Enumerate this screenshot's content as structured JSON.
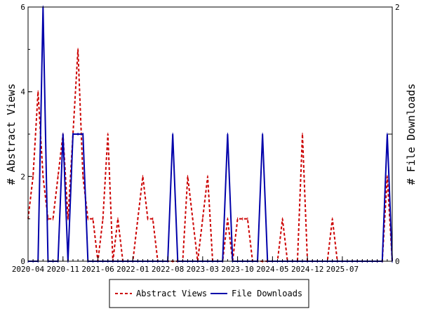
{
  "chart_data": {
    "type": "line",
    "xlabel": "",
    "ylabel_left": "# Abstract Views",
    "ylabel_right": "# File Downloads",
    "ylim_left": [
      0,
      6
    ],
    "ylim_right": [
      0,
      2
    ],
    "yticks_left": [
      "0",
      "2",
      "4",
      "6"
    ],
    "yticks_right": [
      "0",
      "1",
      "2"
    ],
    "x_ticks": [
      "2020-04",
      "2020-11",
      "2021-06",
      "2022-01",
      "2022-08",
      "2023-03",
      "2023-10",
      "2024-05",
      "2024-12",
      "2025-07"
    ],
    "x_start_month": "2020-04",
    "legend_position": "bottom",
    "grid": false,
    "series": [
      {
        "name": "Abstract Views",
        "axis": "left",
        "color": "#cc0000",
        "dash": "dashed",
        "values": [
          1,
          2,
          4,
          2,
          1,
          1,
          2,
          3,
          1,
          3,
          5,
          2,
          1,
          1,
          0,
          1,
          3,
          0,
          1,
          0,
          0,
          0,
          1,
          2,
          1,
          1,
          0,
          0,
          0,
          0,
          0,
          0,
          2,
          1,
          0,
          1,
          2,
          0,
          0,
          0,
          1,
          0,
          1,
          1,
          1,
          0,
          0,
          0,
          0,
          0,
          0,
          1,
          0,
          0,
          0,
          3,
          0,
          0,
          0,
          0,
          0,
          1,
          0,
          0,
          0,
          0,
          0,
          0,
          0,
          0,
          0,
          0,
          2,
          0
        ]
      },
      {
        "name": "File Downloads",
        "axis": "right",
        "color": "#0000aa",
        "dash": "solid",
        "values": [
          0,
          0,
          0,
          2,
          0,
          0,
          0,
          1,
          0,
          1,
          1,
          1,
          0,
          0,
          0,
          0,
          0,
          0,
          0,
          0,
          0,
          0,
          0,
          0,
          0,
          0,
          0,
          0,
          0,
          1,
          0,
          0,
          0,
          0,
          0,
          0,
          0,
          0,
          0,
          0,
          1,
          0,
          0,
          0,
          0,
          0,
          0,
          1,
          0,
          0,
          0,
          0,
          0,
          0,
          0,
          0,
          0,
          0,
          0,
          0,
          0,
          0,
          0,
          0,
          0,
          0,
          0,
          0,
          0,
          0,
          0,
          0,
          1,
          0
        ]
      }
    ]
  }
}
